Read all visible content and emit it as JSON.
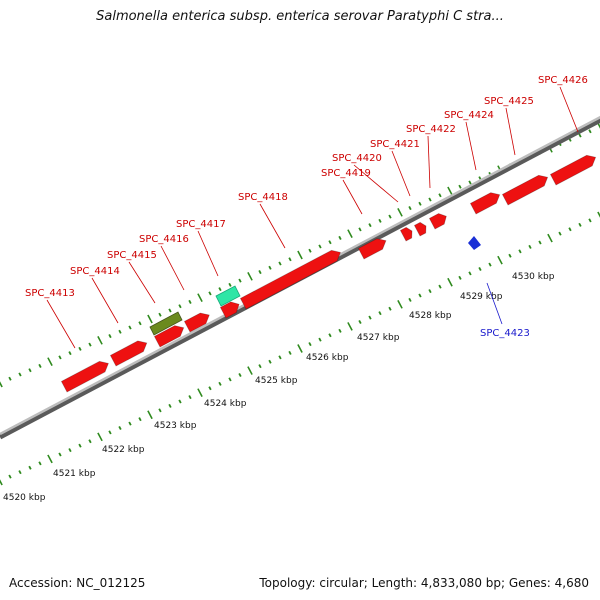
{
  "title": "Salmonella enterica subsp. enterica serovar Paratyphi C stra...",
  "footer": {
    "accession": "Accession: NC_012125",
    "summary": "Topology: circular; Length: 4,833,080 bp; Genes: 4,680"
  },
  "colors": {
    "backbone": "#8c8c8c",
    "tick": "#2f8a1e",
    "gene_forward": "#ee1111",
    "gene_reverse": "#1a2fd6",
    "gene_other_olive": "#6b8a1e",
    "gene_other_teal": "#2ee6a6",
    "label_forward": "#cc0000",
    "label_reverse": "#1a1acc"
  },
  "scale_labels": [
    "4520 kbp",
    "4521 kbp",
    "4522 kbp",
    "4523 kbp",
    "4524 kbp",
    "4525 kbp",
    "4526 kbp",
    "4527 kbp",
    "4528 kbp",
    "4529 kbp",
    "4530 kbp"
  ],
  "gene_labels": {
    "forward": [
      "SPC_4413",
      "SPC_4414",
      "SPC_4415",
      "SPC_4416",
      "SPC_4417",
      "SPC_4418",
      "SPC_4419",
      "SPC_4420",
      "SPC_4421",
      "SPC_4422",
      "SPC_4424",
      "SPC_4425",
      "SPC_4426"
    ],
    "reverse": [
      "SPC_4423"
    ]
  }
}
